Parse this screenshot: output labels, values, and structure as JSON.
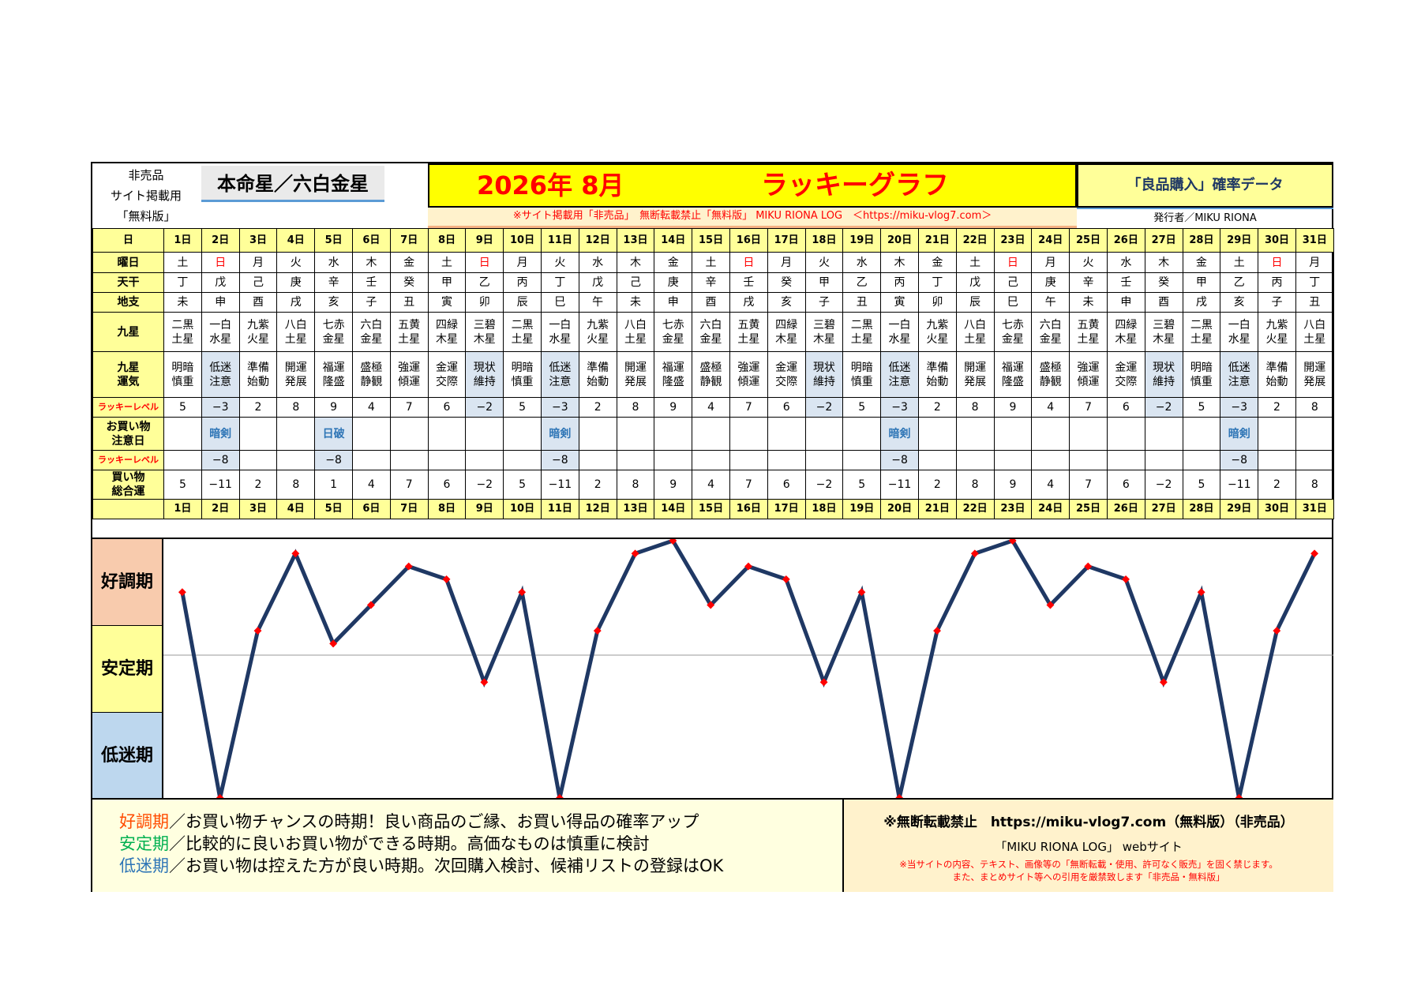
{
  "header": {
    "left_lines": [
      "非売品",
      "サイト掲載用",
      "「無料版」"
    ],
    "honmei": "本命星／六白金星",
    "title_date": "2026年 8月",
    "title_main": "ラッキーグラフ",
    "right_title": "「良品購入」確率データ",
    "notice": "※サイト掲載用「非売品」　無断転載禁止「無料版」 MIKU RIONA LOG　＜https://miku-vlog7.com＞",
    "publisher": "発行者／MIKU RIONA"
  },
  "row_labels": {
    "day": "日",
    "weekday": "曜日",
    "tenkan": "天干",
    "chishi": "地支",
    "kyusei": "九星",
    "kyusei_unki": "九星\n運気",
    "lucky_level": "ラッキーレベル",
    "kaimono_chui": "お買い物\n注意日",
    "lucky_level2": "ラッキーレベル",
    "total": "買い物\n総合運"
  },
  "days": [
    "1日",
    "2日",
    "3日",
    "4日",
    "5日",
    "6日",
    "7日",
    "8日",
    "9日",
    "10日",
    "11日",
    "12日",
    "13日",
    "14日",
    "15日",
    "16日",
    "17日",
    "18日",
    "19日",
    "20日",
    "21日",
    "22日",
    "23日",
    "24日",
    "25日",
    "26日",
    "27日",
    "28日",
    "29日",
    "30日",
    "31日"
  ],
  "weekdays": [
    "土",
    "日",
    "月",
    "火",
    "水",
    "木",
    "金",
    "土",
    "日",
    "月",
    "火",
    "水",
    "木",
    "金",
    "土",
    "日",
    "月",
    "火",
    "水",
    "木",
    "金",
    "土",
    "日",
    "月",
    "火",
    "水",
    "木",
    "金",
    "土",
    "日",
    "月"
  ],
  "tenkan": [
    "丁",
    "戊",
    "己",
    "庚",
    "辛",
    "壬",
    "癸",
    "甲",
    "乙",
    "丙",
    "丁",
    "戊",
    "己",
    "庚",
    "辛",
    "壬",
    "癸",
    "甲",
    "乙",
    "丙",
    "丁",
    "戊",
    "己",
    "庚",
    "辛",
    "壬",
    "癸",
    "甲",
    "乙",
    "丙",
    "丁"
  ],
  "chishi": [
    "未",
    "申",
    "酉",
    "戌",
    "亥",
    "子",
    "丑",
    "寅",
    "卯",
    "辰",
    "巳",
    "午",
    "未",
    "申",
    "酉",
    "戌",
    "亥",
    "子",
    "丑",
    "寅",
    "卯",
    "辰",
    "巳",
    "午",
    "未",
    "申",
    "酉",
    "戌",
    "亥",
    "子",
    "丑"
  ],
  "kyusei": [
    [
      "二黒",
      "土星"
    ],
    [
      "一白",
      "水星"
    ],
    [
      "九紫",
      "火星"
    ],
    [
      "八白",
      "土星"
    ],
    [
      "七赤",
      "金星"
    ],
    [
      "六白",
      "金星"
    ],
    [
      "五黄",
      "土星"
    ],
    [
      "四緑",
      "木星"
    ],
    [
      "三碧",
      "木星"
    ],
    [
      "二黒",
      "土星"
    ],
    [
      "一白",
      "水星"
    ],
    [
      "九紫",
      "火星"
    ],
    [
      "八白",
      "土星"
    ],
    [
      "七赤",
      "金星"
    ],
    [
      "六白",
      "金星"
    ],
    [
      "五黄",
      "土星"
    ],
    [
      "四緑",
      "木星"
    ],
    [
      "三碧",
      "木星"
    ],
    [
      "二黒",
      "土星"
    ],
    [
      "一白",
      "水星"
    ],
    [
      "九紫",
      "火星"
    ],
    [
      "八白",
      "土星"
    ],
    [
      "七赤",
      "金星"
    ],
    [
      "六白",
      "金星"
    ],
    [
      "五黄",
      "土星"
    ],
    [
      "四緑",
      "木星"
    ],
    [
      "三碧",
      "木星"
    ],
    [
      "二黒",
      "土星"
    ],
    [
      "一白",
      "水星"
    ],
    [
      "九紫",
      "火星"
    ],
    [
      "八白",
      "土星"
    ]
  ],
  "unki": [
    [
      "明暗",
      "慎重"
    ],
    [
      "低迷",
      "注意"
    ],
    [
      "準備",
      "始動"
    ],
    [
      "開運",
      "発展"
    ],
    [
      "福運",
      "隆盛"
    ],
    [
      "盛極",
      "静観"
    ],
    [
      "強運",
      "傾運"
    ],
    [
      "金運",
      "交際"
    ],
    [
      "現状",
      "維持"
    ],
    [
      "明暗",
      "慎重"
    ],
    [
      "低迷",
      "注意"
    ],
    [
      "準備",
      "始動"
    ],
    [
      "開運",
      "発展"
    ],
    [
      "福運",
      "隆盛"
    ],
    [
      "盛極",
      "静観"
    ],
    [
      "強運",
      "傾運"
    ],
    [
      "金運",
      "交際"
    ],
    [
      "現状",
      "維持"
    ],
    [
      "明暗",
      "慎重"
    ],
    [
      "低迷",
      "注意"
    ],
    [
      "準備",
      "始動"
    ],
    [
      "開運",
      "発展"
    ],
    [
      "福運",
      "隆盛"
    ],
    [
      "盛極",
      "静観"
    ],
    [
      "強運",
      "傾運"
    ],
    [
      "金運",
      "交際"
    ],
    [
      "現状",
      "維持"
    ],
    [
      "明暗",
      "慎重"
    ],
    [
      "低迷",
      "注意"
    ],
    [
      "準備",
      "始動"
    ],
    [
      "開運",
      "発展"
    ]
  ],
  "lucky_level": [
    "5",
    "−3",
    "2",
    "8",
    "9",
    "4",
    "7",
    "6",
    "−2",
    "5",
    "−3",
    "2",
    "8",
    "9",
    "4",
    "7",
    "6",
    "−2",
    "5",
    "−3",
    "2",
    "8",
    "9",
    "4",
    "7",
    "6",
    "−2",
    "5",
    "−3",
    "2",
    "8"
  ],
  "caution_day": [
    "",
    "暗剣",
    "",
    "",
    "日破",
    "",
    "",
    "",
    "",
    "",
    "暗剣",
    "",
    "",
    "",
    "",
    "",
    "",
    "",
    "",
    "暗剣",
    "",
    "",
    "",
    "",
    "",
    "",
    "",
    "",
    "暗剣",
    "",
    ""
  ],
  "lucky_level2": [
    "",
    "−8",
    "",
    "",
    "−8",
    "",
    "",
    "",
    "",
    "",
    "−8",
    "",
    "",
    "",
    "",
    "",
    "",
    "",
    "",
    "−8",
    "",
    "",
    "",
    "",
    "",
    "",
    "",
    "",
    "−8",
    "",
    ""
  ],
  "total": [
    "5",
    "−11",
    "2",
    "8",
    "1",
    "4",
    "7",
    "6",
    "−2",
    "5",
    "−11",
    "2",
    "8",
    "9",
    "4",
    "7",
    "6",
    "−2",
    "5",
    "−11",
    "2",
    "8",
    "9",
    "4",
    "7",
    "6",
    "−2",
    "5",
    "−11",
    "2",
    "8"
  ],
  "chart_data": {
    "type": "line",
    "x": [
      "1日",
      "2日",
      "3日",
      "4日",
      "5日",
      "6日",
      "7日",
      "8日",
      "9日",
      "10日",
      "11日",
      "12日",
      "13日",
      "14日",
      "15日",
      "16日",
      "17日",
      "18日",
      "19日",
      "20日",
      "21日",
      "22日",
      "23日",
      "24日",
      "25日",
      "26日",
      "27日",
      "28日",
      "29日",
      "30日",
      "31日"
    ],
    "values": [
      5,
      -11,
      2,
      8,
      1,
      4,
      7,
      6,
      -2,
      5,
      -11,
      2,
      8,
      9,
      4,
      7,
      6,
      -2,
      5,
      -11,
      2,
      8,
      9,
      4,
      7,
      6,
      -2,
      5,
      -11,
      2,
      8
    ],
    "ylim": [
      -11,
      9
    ],
    "bands": [
      "好調期",
      "安定期",
      "低迷期"
    ],
    "line_color": "#1f3864",
    "marker_color": "#ff0000"
  },
  "footer": {
    "good_key": "好調期",
    "good_text": "／お買い物チャンスの時期！良い商品のご縁、お買い得品の確率アップ",
    "stable_key": "安定期",
    "stable_text": "／比較的に良いお買い物ができる時期。高価なものは慎重に検討",
    "low_key": "低迷期",
    "low_text": "／お買い物は控えた方が良い時期。次回購入検討、候補リストの登録はOK",
    "r1": "※無断転載禁止　https://miku-vlog7.com（無料版）（非売品）",
    "r2": "「MIKU RIONA LOG」 webサイト",
    "r3": "※当サイトの内容、テキスト、画像等の「無断転載・使用、許可なく販売」を固く禁じます。",
    "r4": "また、まとめサイト等への引用を厳禁致します「非売品・無料版」"
  },
  "colors": {
    "yellow": "#ffff00",
    "pale_yellow": "#ffff99",
    "highlight": "#dae5f1",
    "good_band": "#f8cbad",
    "stable_band": "#ffff99",
    "low_band": "#bdd7ee"
  }
}
